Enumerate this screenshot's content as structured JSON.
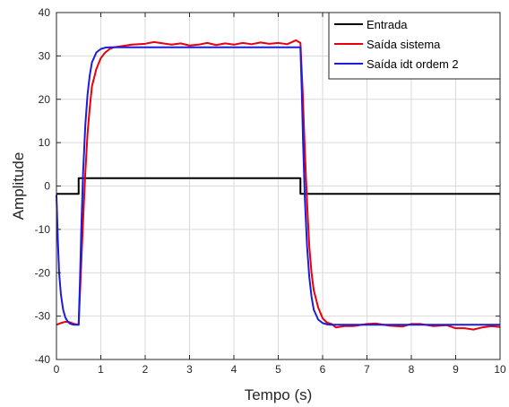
{
  "chart_data": {
    "type": "line",
    "title": "",
    "xlabel": "Tempo (s)",
    "ylabel": "Amplitude",
    "xlim": [
      0,
      10
    ],
    "ylim": [
      -40,
      40
    ],
    "xticks": [
      0,
      1,
      2,
      3,
      4,
      5,
      6,
      7,
      8,
      9,
      10
    ],
    "yticks": [
      -40,
      -30,
      -20,
      -10,
      0,
      10,
      20,
      30,
      40
    ],
    "grid": true,
    "legend_position": "top-right",
    "series": [
      {
        "name": "Entrada",
        "color": "#000000",
        "x": [
          0,
          0.5,
          0.5,
          5.5,
          5.5,
          10
        ],
        "y": [
          -1.8,
          -1.8,
          1.8,
          1.8,
          -1.8,
          -1.8
        ]
      },
      {
        "name": "Saída sistema",
        "color": "#e8000b",
        "x": [
          0,
          0.1,
          0.2,
          0.3,
          0.4,
          0.5,
          0.55,
          0.6,
          0.65,
          0.7,
          0.75,
          0.8,
          0.9,
          1.0,
          1.1,
          1.2,
          1.3,
          1.5,
          1.7,
          2.0,
          2.2,
          2.4,
          2.6,
          2.8,
          3.0,
          3.2,
          3.4,
          3.6,
          3.8,
          4.0,
          4.2,
          4.4,
          4.6,
          4.8,
          5.0,
          5.2,
          5.4,
          5.5,
          5.55,
          5.6,
          5.65,
          5.7,
          5.75,
          5.8,
          5.9,
          6.0,
          6.1,
          6.2,
          6.3,
          6.5,
          6.7,
          7.0,
          7.2,
          7.5,
          7.8,
          8.0,
          8.2,
          8.5,
          8.8,
          9.0,
          9.2,
          9.4,
          9.6,
          9.8,
          10.0
        ],
        "y": [
          -32,
          -31.6,
          -31.3,
          -31.4,
          -31.8,
          -32,
          -20,
          -8,
          3,
          12,
          18,
          23,
          27,
          29.5,
          30.8,
          31.6,
          32,
          32.3,
          32.6,
          32.8,
          33.2,
          32.9,
          32.6,
          32.9,
          32.4,
          32.6,
          33.0,
          32.5,
          32.9,
          32.6,
          33.0,
          32.7,
          33.1,
          32.8,
          33.0,
          32.7,
          33.6,
          33.0,
          22,
          8,
          -4,
          -14,
          -20,
          -24,
          -28,
          -30.5,
          -31.5,
          -31.8,
          -32.6,
          -32.3,
          -32.3,
          -31.8,
          -31.7,
          -32.2,
          -32.4,
          -31.8,
          -31.8,
          -32.3,
          -32.1,
          -32.8,
          -32.8,
          -33.1,
          -32.6,
          -32.3,
          -32.5
        ]
      },
      {
        "name": "Saída idt ordem 2",
        "color": "#1c1cdc",
        "x": [
          0,
          0.03,
          0.06,
          0.1,
          0.15,
          0.2,
          0.25,
          0.3,
          0.35,
          0.4,
          0.45,
          0.5,
          0.53,
          0.56,
          0.6,
          0.65,
          0.7,
          0.75,
          0.8,
          0.9,
          1.0,
          1.1,
          1.2,
          1.4,
          1.6,
          2.0,
          3.0,
          4.0,
          5.0,
          5.5,
          5.53,
          5.56,
          5.6,
          5.65,
          5.7,
          5.75,
          5.8,
          5.9,
          6.0,
          6.1,
          6.2,
          6.4,
          6.6,
          7.0,
          8.0,
          9.0,
          10.0
        ],
        "y": [
          -2,
          -12,
          -20,
          -25,
          -28.5,
          -30.3,
          -31.2,
          -31.7,
          -31.9,
          -32,
          -32,
          -32,
          -22,
          -10,
          3,
          14,
          21,
          25.5,
          28.5,
          30.8,
          31.6,
          31.9,
          32.0,
          32.0,
          32.0,
          32.0,
          32.0,
          32.0,
          32.0,
          32.0,
          22,
          10,
          -3,
          -14,
          -21,
          -25.5,
          -28.5,
          -30.8,
          -31.6,
          -31.9,
          -32.0,
          -32.0,
          -32.0,
          -32.0,
          -32.0,
          -32.0,
          -32.0
        ]
      }
    ]
  }
}
